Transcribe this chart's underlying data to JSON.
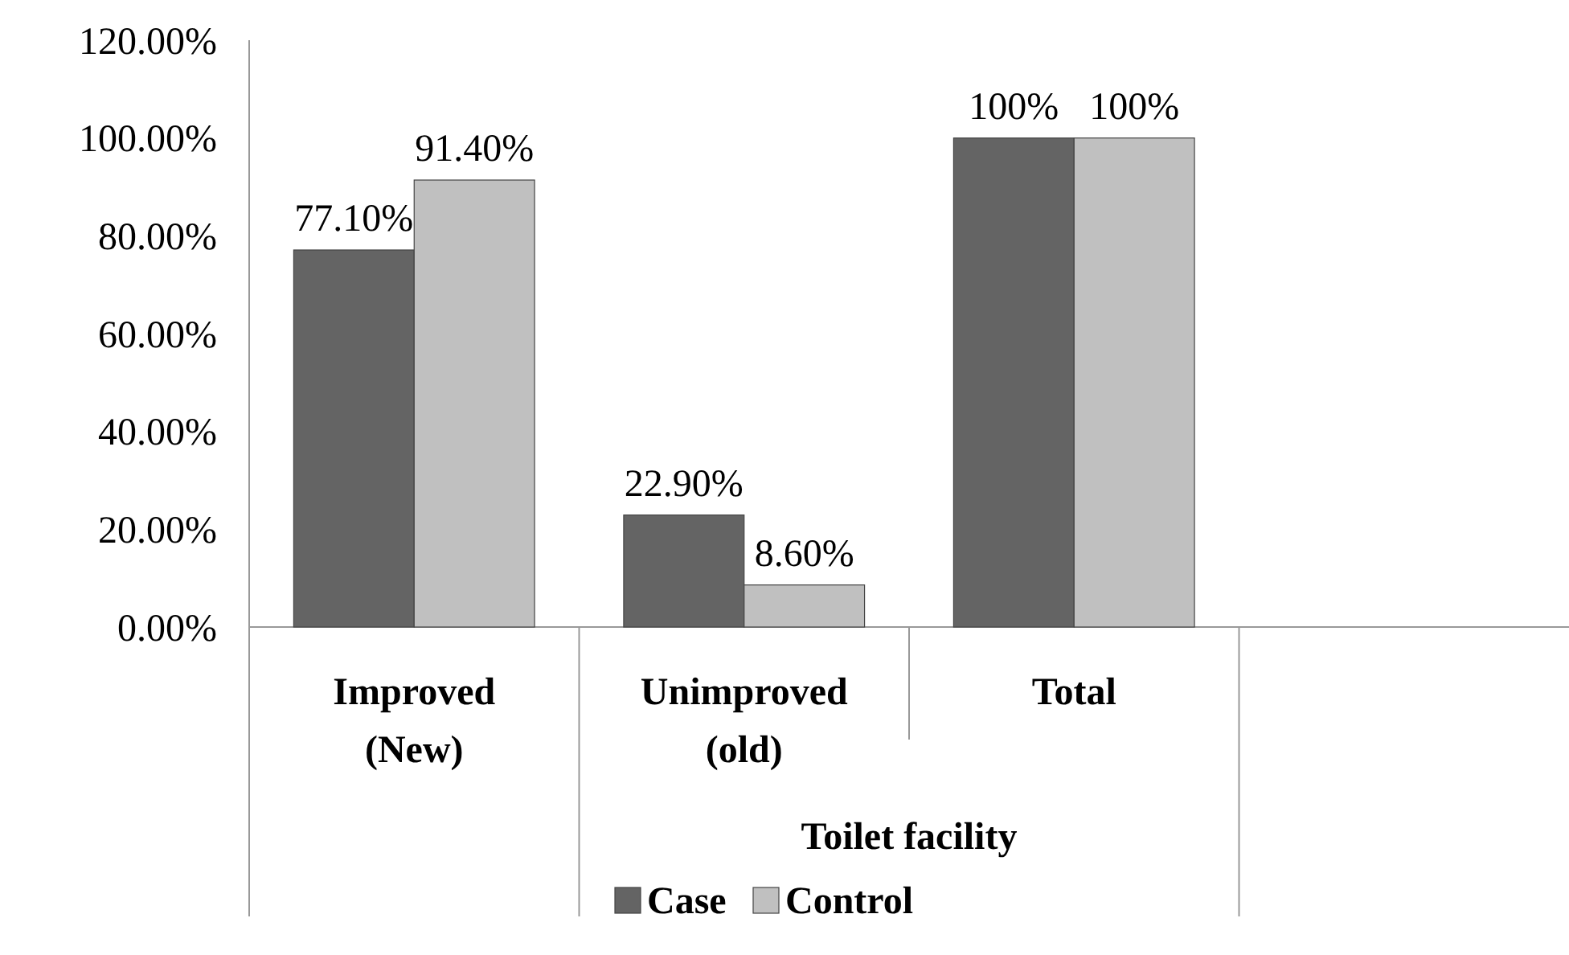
{
  "chart_data": {
    "type": "bar",
    "xlabel": "Toilet facility",
    "categories": [
      "Improved (New)",
      "Unimproved (old)",
      "Total",
      null
    ],
    "series": [
      {
        "name": "Case",
        "color": "#646464",
        "values": [
          77.1,
          22.9,
          100,
          null
        ],
        "value_labels": [
          "77.10%",
          "22.90%",
          "100%",
          null
        ]
      },
      {
        "name": "Control",
        "color": "#c0c0c0",
        "values": [
          91.4,
          8.6,
          100,
          null
        ],
        "value_labels": [
          "91.40%",
          "8.60%",
          "100%",
          null
        ]
      }
    ],
    "ylim": [
      0,
      120
    ],
    "yticks": [
      {
        "value": 0,
        "label": "0.00%"
      },
      {
        "value": 20,
        "label": "20.00%"
      },
      {
        "value": 40,
        "label": "40.00%"
      },
      {
        "value": 60,
        "label": "60.00%"
      },
      {
        "value": 80,
        "label": "80.00%"
      },
      {
        "value": 100,
        "label": "100.00%"
      },
      {
        "value": 120,
        "label": "120.00%"
      }
    ],
    "grid": false,
    "legend": "bottom"
  }
}
